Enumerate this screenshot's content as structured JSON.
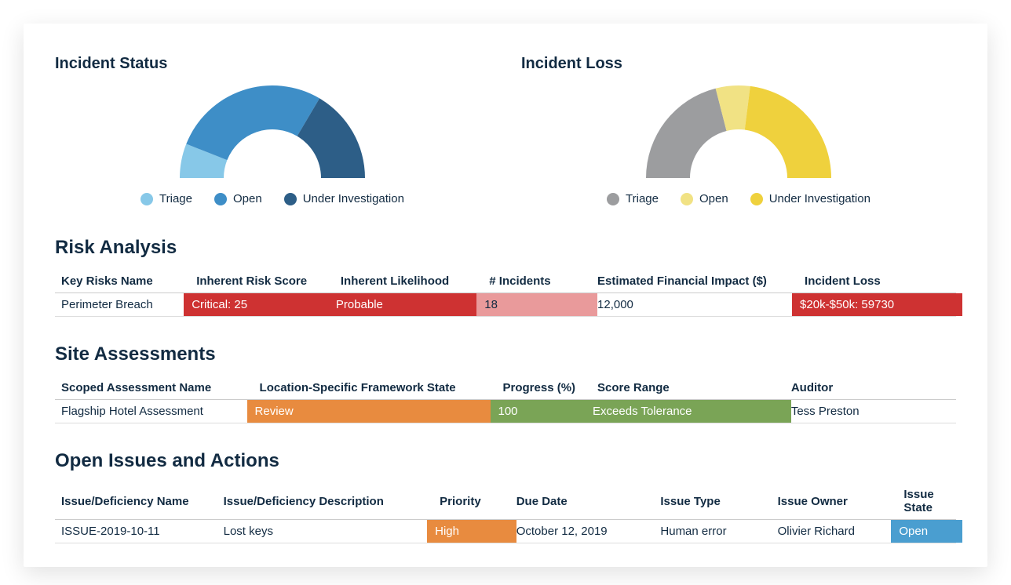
{
  "charts": {
    "incident_status": {
      "title": "Incident Status",
      "type": "half-donut",
      "inner_radius": 62,
      "outer_radius": 118,
      "segments": [
        {
          "label": "Triage",
          "value": 12,
          "color": "#87c8e8"
        },
        {
          "label": "Open",
          "value": 55,
          "color": "#3e8ec7"
        },
        {
          "label": "Under Investigation",
          "value": 33,
          "color": "#2d5e87"
        }
      ],
      "background_color": "#ffffff"
    },
    "incident_loss": {
      "title": "Incident Loss",
      "type": "half-donut",
      "inner_radius": 62,
      "outer_radius": 118,
      "segments": [
        {
          "label": "Triage",
          "value": 42,
          "color": "#9c9d9f"
        },
        {
          "label": "Open",
          "value": 12,
          "color": "#f1e284"
        },
        {
          "label": "Under Investigation",
          "value": 46,
          "color": "#efd13d"
        }
      ],
      "background_color": "#ffffff"
    }
  },
  "risk_analysis": {
    "title": "Risk Analysis",
    "columns": [
      "Key Risks Name",
      "Inherent Risk Score",
      "Inherent Likelihood",
      "# Incidents",
      "Estimated Financial Impact ($)",
      "Incident Loss"
    ],
    "col_widths": [
      "15%",
      "16%",
      "16.5%",
      "12%",
      "23%",
      "17.5%"
    ],
    "rows": [
      {
        "cells": [
          {
            "text": "Perimeter Breach",
            "bg": null,
            "fg": "#122b42"
          },
          {
            "text": "Critical: 25",
            "bg": "#ce3232",
            "fg": "#ffffff"
          },
          {
            "text": "Probable",
            "bg": "#ce3232",
            "fg": "#ffffff"
          },
          {
            "text": "18",
            "bg": "#e99a9b",
            "fg": "#122b42"
          },
          {
            "text": "12,000",
            "bg": null,
            "fg": "#122b42"
          },
          {
            "text": "$20k-$50k: 59730",
            "bg": "#ce3232",
            "fg": "#ffffff"
          }
        ]
      }
    ]
  },
  "site_assessments": {
    "title": "Site Assessments",
    "columns": [
      "Scoped Assessment Name",
      "Location-Specific Framework State",
      "Progress (%)",
      "Score Range",
      "Auditor"
    ],
    "col_widths": [
      "22%",
      "27%",
      "10.5%",
      "21.5%",
      "19%"
    ],
    "rows": [
      {
        "cells": [
          {
            "text": "Flagship Hotel Assessment",
            "bg": null,
            "fg": "#122b42"
          },
          {
            "text": "Review",
            "bg": "#e88b3f",
            "fg": "#ffffff"
          },
          {
            "text": "100",
            "bg": "#7aa456",
            "fg": "#ffffff"
          },
          {
            "text": "Exceeds Tolerance",
            "bg": "#7aa456",
            "fg": "#ffffff"
          },
          {
            "text": "Tess Preston",
            "bg": null,
            "fg": "#122b42"
          }
        ]
      }
    ]
  },
  "open_issues": {
    "title": "Open Issues and Actions",
    "columns": [
      "Issue/Deficiency Name",
      "Issue/Deficiency Description",
      "Priority",
      "Due Date",
      "Issue Type",
      "Issue Owner",
      "Issue State"
    ],
    "col_widths": [
      "18%",
      "24%",
      "8.5%",
      "16%",
      "13%",
      "14%",
      "6.5%"
    ],
    "rows": [
      {
        "cells": [
          {
            "text": "ISSUE-2019-10-11",
            "bg": null,
            "fg": "#122b42"
          },
          {
            "text": "Lost keys",
            "bg": null,
            "fg": "#122b42"
          },
          {
            "text": "High",
            "bg": "#e88b3f",
            "fg": "#ffffff"
          },
          {
            "text": "October 12, 2019",
            "bg": null,
            "fg": "#122b42"
          },
          {
            "text": "Human error",
            "bg": null,
            "fg": "#122b42"
          },
          {
            "text": "Olivier Richard",
            "bg": null,
            "fg": "#122b42"
          },
          {
            "text": "Open",
            "bg": "#4a9ed0",
            "fg": "#ffffff"
          }
        ]
      }
    ]
  }
}
